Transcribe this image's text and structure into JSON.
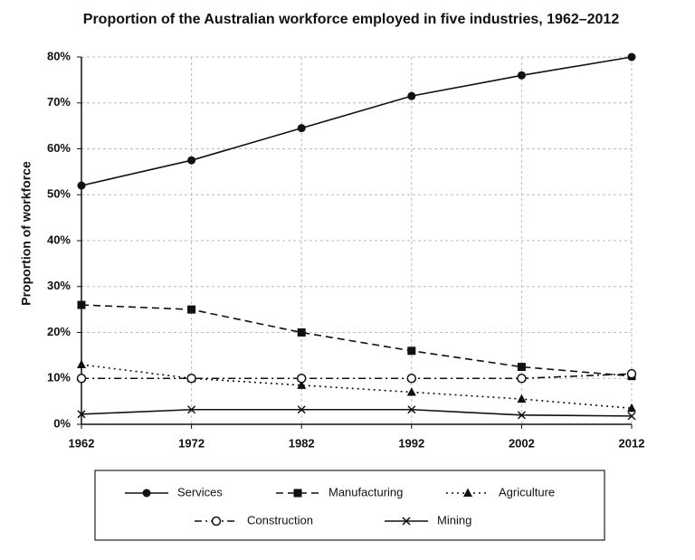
{
  "chart_data": {
    "type": "line",
    "title": "Proportion of the Australian workforce employed in five industries, 1962–2012",
    "y_label": "Proportion of workforce",
    "x": [
      1962,
      1972,
      1982,
      1992,
      2002,
      2012
    ],
    "xlim": [
      1962,
      2012
    ],
    "xticks": [
      1962,
      1972,
      1982,
      1992,
      2002,
      2012
    ],
    "ylim": [
      0,
      80
    ],
    "yticks": [
      {
        "value": 0,
        "label": "0%"
      },
      {
        "value": 10,
        "label": "10%"
      },
      {
        "value": 20,
        "label": "20%"
      },
      {
        "value": 30,
        "label": "30%"
      },
      {
        "value": 40,
        "label": "40%"
      },
      {
        "value": 50,
        "label": "50%"
      },
      {
        "value": 60,
        "label": "60%"
      },
      {
        "value": 70,
        "label": "70%"
      },
      {
        "value": 80,
        "label": "80%"
      }
    ],
    "grid": true,
    "legend": "bottom",
    "series": [
      {
        "name": "Services",
        "color": "#111111",
        "dash": "solid",
        "marker": "circle",
        "values": [
          52,
          57.5,
          64.5,
          71.5,
          76,
          80
        ]
      },
      {
        "name": "Manufacturing",
        "color": "#111111",
        "dash": "dashed",
        "marker": "square",
        "values": [
          26,
          25,
          20,
          16,
          12.5,
          10.5
        ]
      },
      {
        "name": "Agriculture",
        "color": "#111111",
        "dash": "dotted",
        "marker": "triangle",
        "values": [
          13,
          10,
          8.5,
          7,
          5.5,
          3.5
        ]
      },
      {
        "name": "Construction",
        "color": "#111111",
        "dash": "dashdot",
        "marker": "open-circle",
        "values": [
          10,
          10,
          10,
          10,
          10,
          11
        ]
      },
      {
        "name": "Mining",
        "color": "#111111",
        "dash": "solid",
        "marker": "cross",
        "values": [
          2.2,
          3.2,
          3.2,
          3.2,
          2,
          1.8
        ]
      }
    ]
  }
}
